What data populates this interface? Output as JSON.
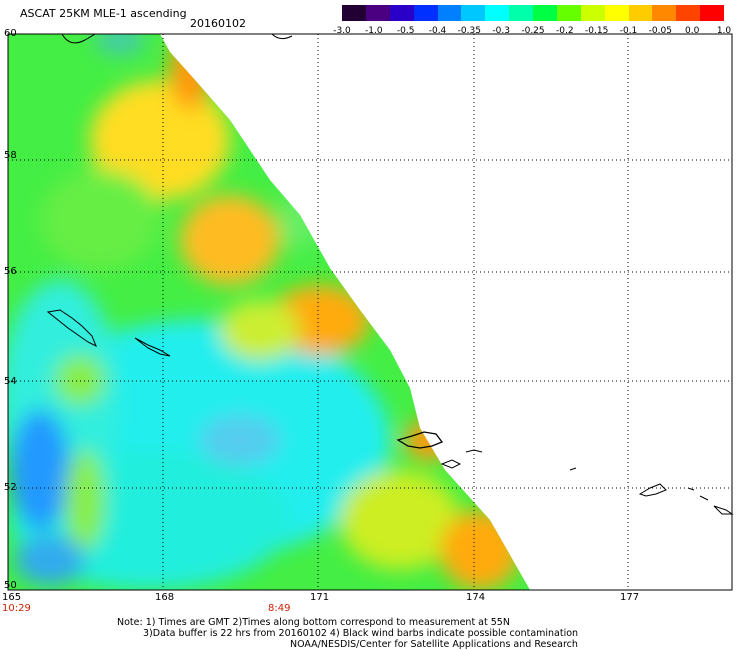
{
  "title": "ASCAT 25KM MLE-1 ascending",
  "date": "20160102",
  "colorbar": {
    "colors": [
      "#220033",
      "#4a0080",
      "#2a00c8",
      "#0030ff",
      "#0080ff",
      "#00c8ff",
      "#00ffff",
      "#00ffaa",
      "#00ff44",
      "#66ff00",
      "#ccff00",
      "#ffff00",
      "#ffcc00",
      "#ff8800",
      "#ff4400",
      "#ff0000"
    ],
    "labels": [
      "-3.0",
      "-1.0",
      "-0.5",
      "-0.4",
      "-0.35",
      "-0.3",
      "-0.25",
      "-0.2",
      "-0.15",
      "-0.1",
      "-0.05",
      "0.0",
      "1.0"
    ]
  },
  "lat_labels": [
    "60",
    "58",
    "56",
    "54",
    "52",
    "50"
  ],
  "lon_labels": [
    "165",
    "168",
    "171",
    "174",
    "177"
  ],
  "time_labels": [
    "10:29",
    "8:49"
  ],
  "notes": {
    "line1": "Note: 1) Times are GMT 2)Times along bottom correspond to measurement at 55N",
    "line2": "3)Data buffer is 22 hrs from 20160102 4) Black wind barbs indicate possible contamination",
    "line3": "NOAA/NESDIS/Center for Satellite Applications and Research"
  }
}
